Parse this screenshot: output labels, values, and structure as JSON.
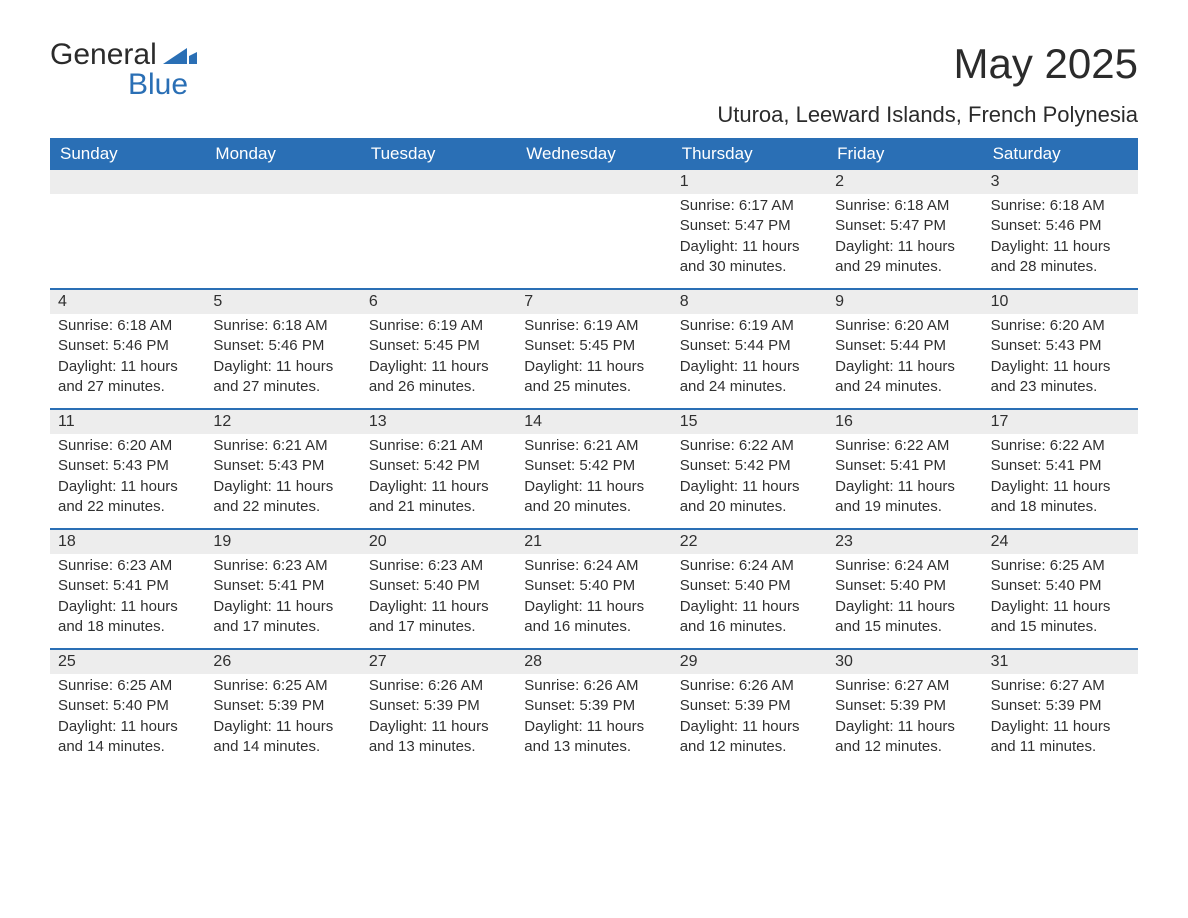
{
  "logo": {
    "word1": "General",
    "word2": "Blue",
    "brand_color": "#2a6fb5",
    "text_color": "#2b2b2b"
  },
  "title": "May 2025",
  "location": "Uturoa, Leeward Islands, French Polynesia",
  "colors": {
    "header_bg": "#2a6fb5",
    "header_text": "#ffffff",
    "daynum_bg": "#ededed",
    "body_text": "#303030",
    "background": "#ffffff"
  },
  "typography": {
    "title_fontsize": 42,
    "location_fontsize": 22,
    "header_fontsize": 17,
    "body_fontsize": 15,
    "font_family": "Arial"
  },
  "calendar": {
    "columns": [
      "Sunday",
      "Monday",
      "Tuesday",
      "Wednesday",
      "Thursday",
      "Friday",
      "Saturday"
    ],
    "weeks": [
      [
        null,
        null,
        null,
        null,
        {
          "n": "1",
          "sr": "Sunrise: 6:17 AM",
          "ss": "Sunset: 5:47 PM",
          "dl": "Daylight: 11 hours and 30 minutes."
        },
        {
          "n": "2",
          "sr": "Sunrise: 6:18 AM",
          "ss": "Sunset: 5:47 PM",
          "dl": "Daylight: 11 hours and 29 minutes."
        },
        {
          "n": "3",
          "sr": "Sunrise: 6:18 AM",
          "ss": "Sunset: 5:46 PM",
          "dl": "Daylight: 11 hours and 28 minutes."
        }
      ],
      [
        {
          "n": "4",
          "sr": "Sunrise: 6:18 AM",
          "ss": "Sunset: 5:46 PM",
          "dl": "Daylight: 11 hours and 27 minutes."
        },
        {
          "n": "5",
          "sr": "Sunrise: 6:18 AM",
          "ss": "Sunset: 5:46 PM",
          "dl": "Daylight: 11 hours and 27 minutes."
        },
        {
          "n": "6",
          "sr": "Sunrise: 6:19 AM",
          "ss": "Sunset: 5:45 PM",
          "dl": "Daylight: 11 hours and 26 minutes."
        },
        {
          "n": "7",
          "sr": "Sunrise: 6:19 AM",
          "ss": "Sunset: 5:45 PM",
          "dl": "Daylight: 11 hours and 25 minutes."
        },
        {
          "n": "8",
          "sr": "Sunrise: 6:19 AM",
          "ss": "Sunset: 5:44 PM",
          "dl": "Daylight: 11 hours and 24 minutes."
        },
        {
          "n": "9",
          "sr": "Sunrise: 6:20 AM",
          "ss": "Sunset: 5:44 PM",
          "dl": "Daylight: 11 hours and 24 minutes."
        },
        {
          "n": "10",
          "sr": "Sunrise: 6:20 AM",
          "ss": "Sunset: 5:43 PM",
          "dl": "Daylight: 11 hours and 23 minutes."
        }
      ],
      [
        {
          "n": "11",
          "sr": "Sunrise: 6:20 AM",
          "ss": "Sunset: 5:43 PM",
          "dl": "Daylight: 11 hours and 22 minutes."
        },
        {
          "n": "12",
          "sr": "Sunrise: 6:21 AM",
          "ss": "Sunset: 5:43 PM",
          "dl": "Daylight: 11 hours and 22 minutes."
        },
        {
          "n": "13",
          "sr": "Sunrise: 6:21 AM",
          "ss": "Sunset: 5:42 PM",
          "dl": "Daylight: 11 hours and 21 minutes."
        },
        {
          "n": "14",
          "sr": "Sunrise: 6:21 AM",
          "ss": "Sunset: 5:42 PM",
          "dl": "Daylight: 11 hours and 20 minutes."
        },
        {
          "n": "15",
          "sr": "Sunrise: 6:22 AM",
          "ss": "Sunset: 5:42 PM",
          "dl": "Daylight: 11 hours and 20 minutes."
        },
        {
          "n": "16",
          "sr": "Sunrise: 6:22 AM",
          "ss": "Sunset: 5:41 PM",
          "dl": "Daylight: 11 hours and 19 minutes."
        },
        {
          "n": "17",
          "sr": "Sunrise: 6:22 AM",
          "ss": "Sunset: 5:41 PM",
          "dl": "Daylight: 11 hours and 18 minutes."
        }
      ],
      [
        {
          "n": "18",
          "sr": "Sunrise: 6:23 AM",
          "ss": "Sunset: 5:41 PM",
          "dl": "Daylight: 11 hours and 18 minutes."
        },
        {
          "n": "19",
          "sr": "Sunrise: 6:23 AM",
          "ss": "Sunset: 5:41 PM",
          "dl": "Daylight: 11 hours and 17 minutes."
        },
        {
          "n": "20",
          "sr": "Sunrise: 6:23 AM",
          "ss": "Sunset: 5:40 PM",
          "dl": "Daylight: 11 hours and 17 minutes."
        },
        {
          "n": "21",
          "sr": "Sunrise: 6:24 AM",
          "ss": "Sunset: 5:40 PM",
          "dl": "Daylight: 11 hours and 16 minutes."
        },
        {
          "n": "22",
          "sr": "Sunrise: 6:24 AM",
          "ss": "Sunset: 5:40 PM",
          "dl": "Daylight: 11 hours and 16 minutes."
        },
        {
          "n": "23",
          "sr": "Sunrise: 6:24 AM",
          "ss": "Sunset: 5:40 PM",
          "dl": "Daylight: 11 hours and 15 minutes."
        },
        {
          "n": "24",
          "sr": "Sunrise: 6:25 AM",
          "ss": "Sunset: 5:40 PM",
          "dl": "Daylight: 11 hours and 15 minutes."
        }
      ],
      [
        {
          "n": "25",
          "sr": "Sunrise: 6:25 AM",
          "ss": "Sunset: 5:40 PM",
          "dl": "Daylight: 11 hours and 14 minutes."
        },
        {
          "n": "26",
          "sr": "Sunrise: 6:25 AM",
          "ss": "Sunset: 5:39 PM",
          "dl": "Daylight: 11 hours and 14 minutes."
        },
        {
          "n": "27",
          "sr": "Sunrise: 6:26 AM",
          "ss": "Sunset: 5:39 PM",
          "dl": "Daylight: 11 hours and 13 minutes."
        },
        {
          "n": "28",
          "sr": "Sunrise: 6:26 AM",
          "ss": "Sunset: 5:39 PM",
          "dl": "Daylight: 11 hours and 13 minutes."
        },
        {
          "n": "29",
          "sr": "Sunrise: 6:26 AM",
          "ss": "Sunset: 5:39 PM",
          "dl": "Daylight: 11 hours and 12 minutes."
        },
        {
          "n": "30",
          "sr": "Sunrise: 6:27 AM",
          "ss": "Sunset: 5:39 PM",
          "dl": "Daylight: 11 hours and 12 minutes."
        },
        {
          "n": "31",
          "sr": "Sunrise: 6:27 AM",
          "ss": "Sunset: 5:39 PM",
          "dl": "Daylight: 11 hours and 11 minutes."
        }
      ]
    ]
  }
}
